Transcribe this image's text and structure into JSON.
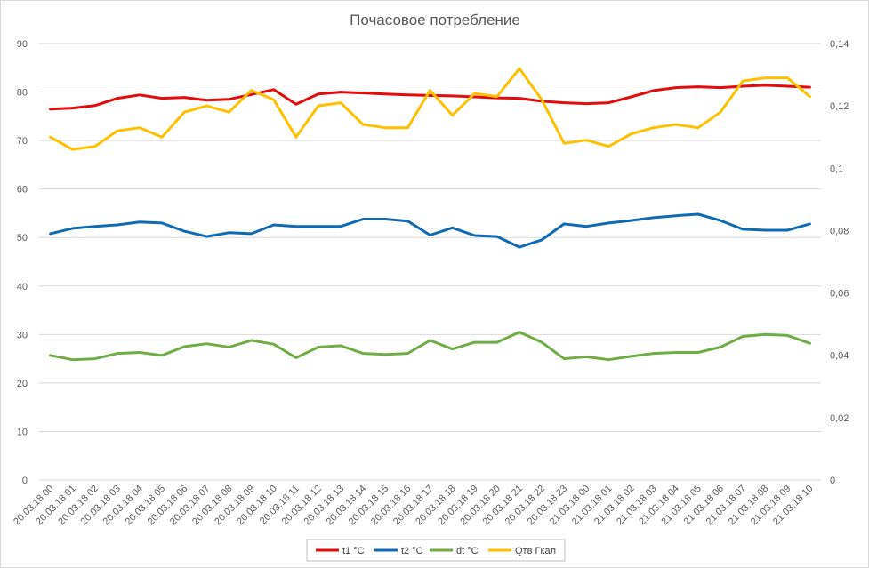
{
  "chart_data": {
    "type": "line",
    "title": "Почасовое потребление",
    "categories": [
      "20.03.18 00",
      "20.03.18 01",
      "20.03.18 02",
      "20.03.18 03",
      "20.03.18 04",
      "20.03.18 05",
      "20.03.18 06",
      "20.03.18 07",
      "20.03.18 08",
      "20.03.18 09",
      "20.03.18 10",
      "20.03.18 11",
      "20.03.18 12",
      "20.03.18 13",
      "20.03.18 14",
      "20.03.18 15",
      "20.03.18 16",
      "20.03.18 17",
      "20.03.18 18",
      "20.03.18 19",
      "20.03.18 20",
      "20.03.18 21",
      "20.03.18 22",
      "20.03.18 23",
      "21.03.18 00",
      "21.03.18 01",
      "21.03.18 02",
      "21.03.18 03",
      "21.03.18 04",
      "21.03.18 05",
      "21.03.18 06",
      "21.03.18 07",
      "21.03.18 08",
      "21.03.18 09",
      "21.03.18 10"
    ],
    "y_left": {
      "ylim": [
        0,
        90
      ],
      "ticks": [
        "0",
        "10",
        "20",
        "30",
        "40",
        "50",
        "60",
        "70",
        "80",
        "90"
      ]
    },
    "y_right": {
      "ylim": [
        0,
        0.14
      ],
      "ticks": [
        "0",
        "0,02",
        "0,04",
        "0,06",
        "0,08",
        "0,1",
        "0,12",
        "0,14"
      ]
    },
    "grid": true,
    "legend_position": "bottom",
    "series": [
      {
        "name": "t1 °C",
        "color": "#e30b0b",
        "axis": "left",
        "values": [
          76.5,
          76.7,
          77.2,
          78.7,
          79.4,
          78.7,
          78.9,
          78.3,
          78.5,
          79.5,
          80.5,
          77.5,
          79.6,
          80.0,
          79.8,
          79.6,
          79.4,
          79.3,
          79.2,
          79.0,
          78.8,
          78.7,
          78.1,
          77.8,
          77.6,
          77.8,
          79.0,
          80.3,
          80.9,
          81.1,
          80.9,
          81.2,
          81.4,
          81.2,
          81.0
        ]
      },
      {
        "name": "t2 °C",
        "color": "#0f6ab4",
        "axis": "left",
        "values": [
          50.8,
          51.9,
          52.3,
          52.6,
          53.2,
          53.0,
          51.3,
          50.2,
          51.0,
          50.8,
          52.6,
          52.3,
          52.3,
          52.3,
          53.8,
          53.8,
          53.4,
          50.5,
          52.0,
          50.4,
          50.2,
          48.0,
          49.5,
          52.8,
          52.3,
          53.0,
          53.5,
          54.1,
          54.5,
          54.8,
          53.5,
          51.7,
          51.5,
          51.5,
          52.8
        ]
      },
      {
        "name": "dt °C",
        "color": "#6fac46",
        "axis": "left",
        "values": [
          25.7,
          24.8,
          25.0,
          26.1,
          26.3,
          25.7,
          27.5,
          28.1,
          27.4,
          28.8,
          28.0,
          25.2,
          27.4,
          27.7,
          26.1,
          25.9,
          26.1,
          28.8,
          27.0,
          28.4,
          28.4,
          30.5,
          28.4,
          25.0,
          25.4,
          24.8,
          25.5,
          26.1,
          26.3,
          26.3,
          27.4,
          29.6,
          30.0,
          29.8,
          28.2
        ]
      },
      {
        "name": "Qтв Гкал",
        "color": "#ffc000",
        "axis": "right",
        "values": [
          0.11,
          0.106,
          0.107,
          0.112,
          0.113,
          0.11,
          0.118,
          0.12,
          0.118,
          0.125,
          0.122,
          0.11,
          0.12,
          0.121,
          0.114,
          0.113,
          0.113,
          0.125,
          0.117,
          0.124,
          0.123,
          0.132,
          0.122,
          0.108,
          0.109,
          0.107,
          0.111,
          0.113,
          0.114,
          0.113,
          0.118,
          0.128,
          0.129,
          0.129,
          0.123
        ]
      }
    ]
  }
}
